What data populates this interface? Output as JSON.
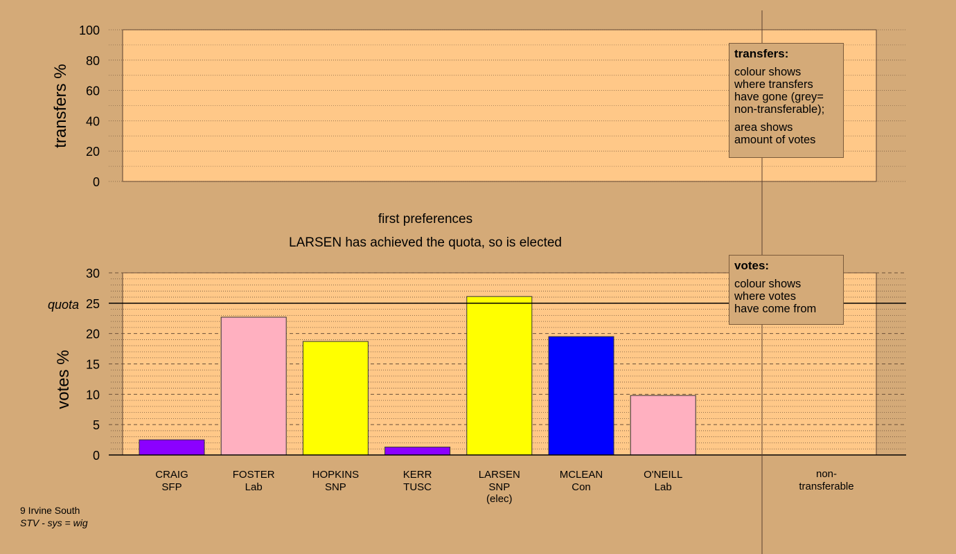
{
  "chart_data": [
    {
      "type": "bar",
      "panel": "transfers",
      "ylabel": "transfers %",
      "ylim": [
        0,
        100
      ],
      "yticks": [
        0,
        20,
        40,
        60,
        80,
        100
      ],
      "series": []
    },
    {
      "type": "bar",
      "panel": "votes",
      "title": "first preferences",
      "subtitle": "LARSEN has achieved the quota, so is elected",
      "ylabel": "votes %",
      "ylim": [
        0,
        30
      ],
      "yticks": [
        0,
        5,
        10,
        15,
        20,
        25,
        30
      ],
      "quota_label": "quota",
      "quota": 25,
      "categories": [
        {
          "name": "CRAIG",
          "party": "SFP",
          "note": "",
          "value": 2.5,
          "color": "#8b00ff"
        },
        {
          "name": "FOSTER",
          "party": "Lab",
          "note": "",
          "value": 22.7,
          "color": "#ffb0c0"
        },
        {
          "name": "HOPKINS",
          "party": "SNP",
          "note": "",
          "value": 18.7,
          "color": "#ffff00"
        },
        {
          "name": "KERR",
          "party": "TUSC",
          "note": "",
          "value": 1.3,
          "color": "#8b00ff"
        },
        {
          "name": "LARSEN",
          "party": "SNP",
          "note": "(elec)",
          "value": 26.1,
          "color": "#ffff00"
        },
        {
          "name": "MCLEAN",
          "party": "Con",
          "note": "",
          "value": 19.5,
          "color": "#0000ff"
        },
        {
          "name": "O'NEILL",
          "party": "Lab",
          "note": "",
          "value": 9.8,
          "color": "#ffb0c0"
        }
      ],
      "nontransferable_label": [
        "non-",
        "transferable"
      ]
    }
  ],
  "legend_transfers": {
    "title": "transfers:",
    "para1": [
      "colour shows",
      "where transfers",
      "have gone (grey=",
      "non-transferable);"
    ],
    "para2": [
      "area shows",
      "amount of votes"
    ]
  },
  "legend_votes": {
    "title": "votes:",
    "para1": [
      "colour shows",
      "where votes",
      "have come from"
    ]
  },
  "footer": {
    "line1": "9 Irvine South",
    "line2": "STV - sys = wig"
  },
  "colors": {
    "background": "#d4aa78",
    "plot_fill": "#ffc888"
  }
}
